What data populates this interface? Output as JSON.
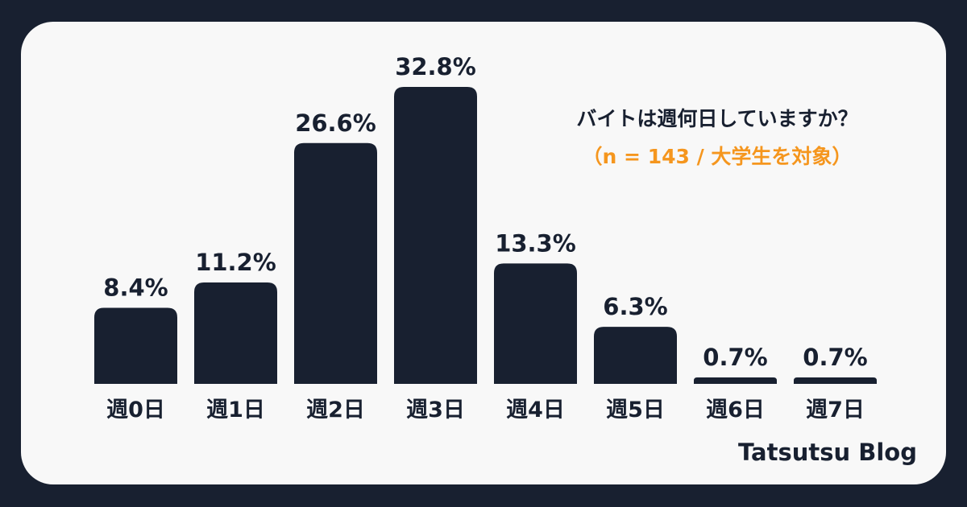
{
  "brand": "Tatsutsu Blog",
  "colors": {
    "background": "#182030",
    "card": "#f8f8f8",
    "bar": "#182030",
    "subtitle": "#f5961e"
  },
  "chart_data": {
    "type": "bar",
    "title": "バイトは週何日していますか？",
    "subtitle": "（n = 143 / 大学生を対象）",
    "xlabel": "",
    "ylabel": "",
    "categories": [
      "週0日",
      "週1日",
      "週2日",
      "週3日",
      "週4日",
      "週5日",
      "週6日",
      "週7日"
    ],
    "values": [
      8.4,
      11.2,
      26.6,
      32.8,
      13.3,
      6.3,
      0.7,
      0.7
    ],
    "value_labels": [
      "8.4%",
      "11.2%",
      "26.6%",
      "32.8%",
      "13.3%",
      "6.3%",
      "0.7%",
      "0.7%"
    ],
    "unit": "%",
    "grid": false,
    "legend": "none"
  }
}
